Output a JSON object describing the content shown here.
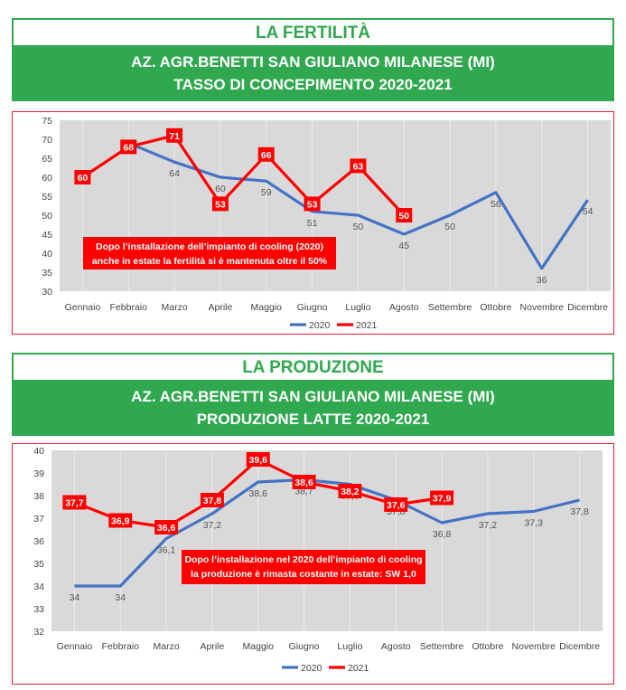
{
  "sections": [
    {
      "title": "LA FERTILITÀ",
      "banner_line1": "AZ. AGR.BENETTI SAN GIULIANO MILANESE (MI)",
      "banner_line2": "TASSO DI CONCEPIMENTO 2020-2021"
    },
    {
      "title": "LA PRODUZIONE",
      "banner_line1": "AZ. AGR.BENETTI SAN GIULIANO MILANESE (MI)",
      "banner_line2": "PRODUZIONE LATTE 2020-2021"
    }
  ],
  "colors": {
    "green": "#2fa84f",
    "series_2020": "#4472c4",
    "series_2021": "#ff0000",
    "plot_bg": "#d9d9d9"
  },
  "chart_data": [
    {
      "type": "line",
      "categories": [
        "Gennaio",
        "Febbraio",
        "Marzo",
        "Aprile",
        "Maggio",
        "Giugno",
        "Luglio",
        "Agosto",
        "Settembre",
        "Ottobre",
        "Novembre",
        "Dicembre"
      ],
      "ylim": [
        30,
        75
      ],
      "yticks": [
        30,
        35,
        40,
        45,
        50,
        55,
        60,
        65,
        70,
        75
      ],
      "series": [
        {
          "name": "2020",
          "values": [
            null,
            69,
            64,
            60,
            59,
            51,
            50,
            45,
            50,
            56,
            36,
            54
          ],
          "labels": [
            "",
            "",
            "64",
            "60",
            "59",
            "51",
            "50",
            "45",
            "50",
            "56",
            "36",
            "54"
          ]
        },
        {
          "name": "2021",
          "values": [
            60,
            68,
            71,
            53,
            66,
            53,
            63,
            50,
            null,
            null,
            null,
            null
          ],
          "labels": [
            "60",
            "68",
            "71",
            "53",
            "66",
            "53",
            "63",
            "50",
            "",
            "",
            "",
            ""
          ]
        }
      ],
      "annotation": [
        "Dopo l’installazione dell’impianto di cooling (2020)",
        "anche in estate la fertilità si è mantenuta oltre il 50%"
      ],
      "legend": "bottom"
    },
    {
      "type": "line",
      "categories": [
        "Gennaio",
        "Febbraio",
        "Marzo",
        "Aprile",
        "Maggio",
        "Giugno",
        "Luglio",
        "Agosto",
        "Settembre",
        "Ottobre",
        "Novembre",
        "Dicembre"
      ],
      "ylim": [
        32,
        40
      ],
      "yticks": [
        32,
        33,
        34,
        35,
        36,
        37,
        38,
        39,
        40
      ],
      "series": [
        {
          "name": "2020",
          "values": [
            34,
            34,
            36.1,
            37.2,
            38.6,
            38.7,
            38.5,
            37.8,
            36.8,
            37.2,
            37.3,
            37.8
          ],
          "labels": [
            "34",
            "34",
            "36,1",
            "37,2",
            "38,6",
            "38,7",
            "38,5",
            "37,8",
            "36,8",
            "37,2",
            "37,3",
            "37,8"
          ]
        },
        {
          "name": "2021",
          "values": [
            37.7,
            36.9,
            36.6,
            37.8,
            39.6,
            38.6,
            38.2,
            37.6,
            37.9,
            null,
            null,
            null
          ],
          "labels": [
            "37,7",
            "36,9",
            "36,6",
            "37,8",
            "39,6",
            "38,6",
            "38,2",
            "37,6",
            "37,9",
            "",
            "",
            ""
          ]
        }
      ],
      "annotation": [
        "Dopo l’installazione nel 2020 dell’impianto di cooling",
        "la produzione è rimasta costante in estate: SW 1,0"
      ],
      "legend": "bottom"
    }
  ]
}
